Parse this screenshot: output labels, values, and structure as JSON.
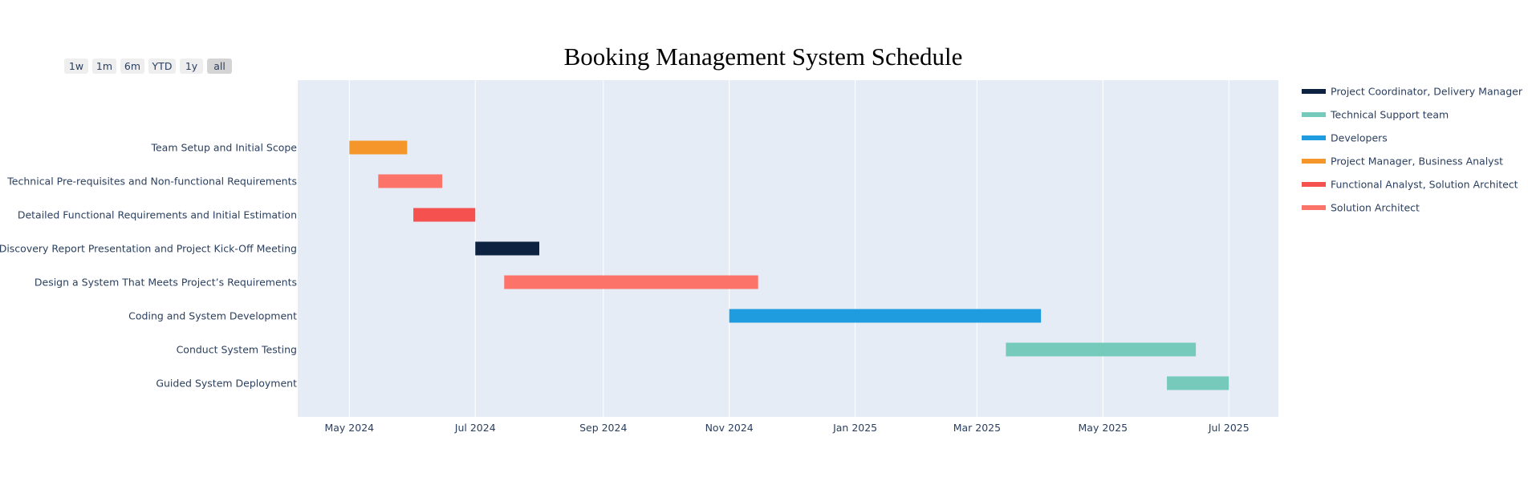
{
  "chart_data": {
    "type": "gantt",
    "title": "Booking Management System Schedule",
    "x_axis": {
      "type": "date",
      "range": [
        "2024-04-06",
        "2025-07-25"
      ],
      "tick_values": [
        "2024-05-01",
        "2024-07-01",
        "2024-09-01",
        "2024-11-01",
        "2025-01-01",
        "2025-03-01",
        "2025-05-01",
        "2025-07-01"
      ],
      "tick_labels": [
        "May 2024",
        "Jul 2024",
        "Sep 2024",
        "Nov 2024",
        "Jan 2025",
        "Mar 2025",
        "May 2025",
        "Jul 2025"
      ],
      "grid": true
    },
    "tasks": [
      {
        "name": "Team Setup and Initial Scope",
        "start": "2024-05-01",
        "end": "2024-05-29",
        "resource": "Project Manager, Business Analyst"
      },
      {
        "name": "Technical Pre-requisites and Non-functional Requirements",
        "start": "2024-05-15",
        "end": "2024-06-15",
        "resource": "Solution Architect"
      },
      {
        "name": "Detailed Functional Requirements and Initial Estimation",
        "start": "2024-06-01",
        "end": "2024-07-01",
        "resource": "Functional Analyst, Solution Architect"
      },
      {
        "name": "Discovery Report Presentation and Project Kick-Off Meeting",
        "start": "2024-07-01",
        "end": "2024-08-01",
        "resource": "Project Coordinator, Delivery Manager"
      },
      {
        "name": "Design a System That Meets Project’s Requirements",
        "start": "2024-07-15",
        "end": "2024-11-15",
        "resource": "Solution Architect"
      },
      {
        "name": "Coding and System Development",
        "start": "2024-11-01",
        "end": "2025-04-01",
        "resource": "Developers"
      },
      {
        "name": "Conduct System Testing",
        "start": "2025-03-15",
        "end": "2025-06-15",
        "resource": "Technical Support team"
      },
      {
        "name": "Guided System Deployment",
        "start": "2025-06-01",
        "end": "2025-07-01",
        "resource": "Technical Support team"
      }
    ],
    "legend": {
      "position": "right",
      "items": [
        {
          "name": "Project Coordinator, Delivery Manager",
          "color": "#0d2240"
        },
        {
          "name": "Technical Support team",
          "color": "#76cabc"
        },
        {
          "name": "Developers",
          "color": "#1f9cdf"
        },
        {
          "name": "Project Manager, Business Analyst",
          "color": "#f5962a"
        },
        {
          "name": "Functional Analyst, Solution Architect",
          "color": "#f5514f"
        },
        {
          "name": "Solution Architect",
          "color": "#fc736a"
        }
      ]
    },
    "plot_background": "#e5ecf6"
  },
  "range_selector": {
    "buttons": [
      "1w",
      "1m",
      "6m",
      "YTD",
      "1y",
      "all"
    ],
    "active": "all"
  }
}
